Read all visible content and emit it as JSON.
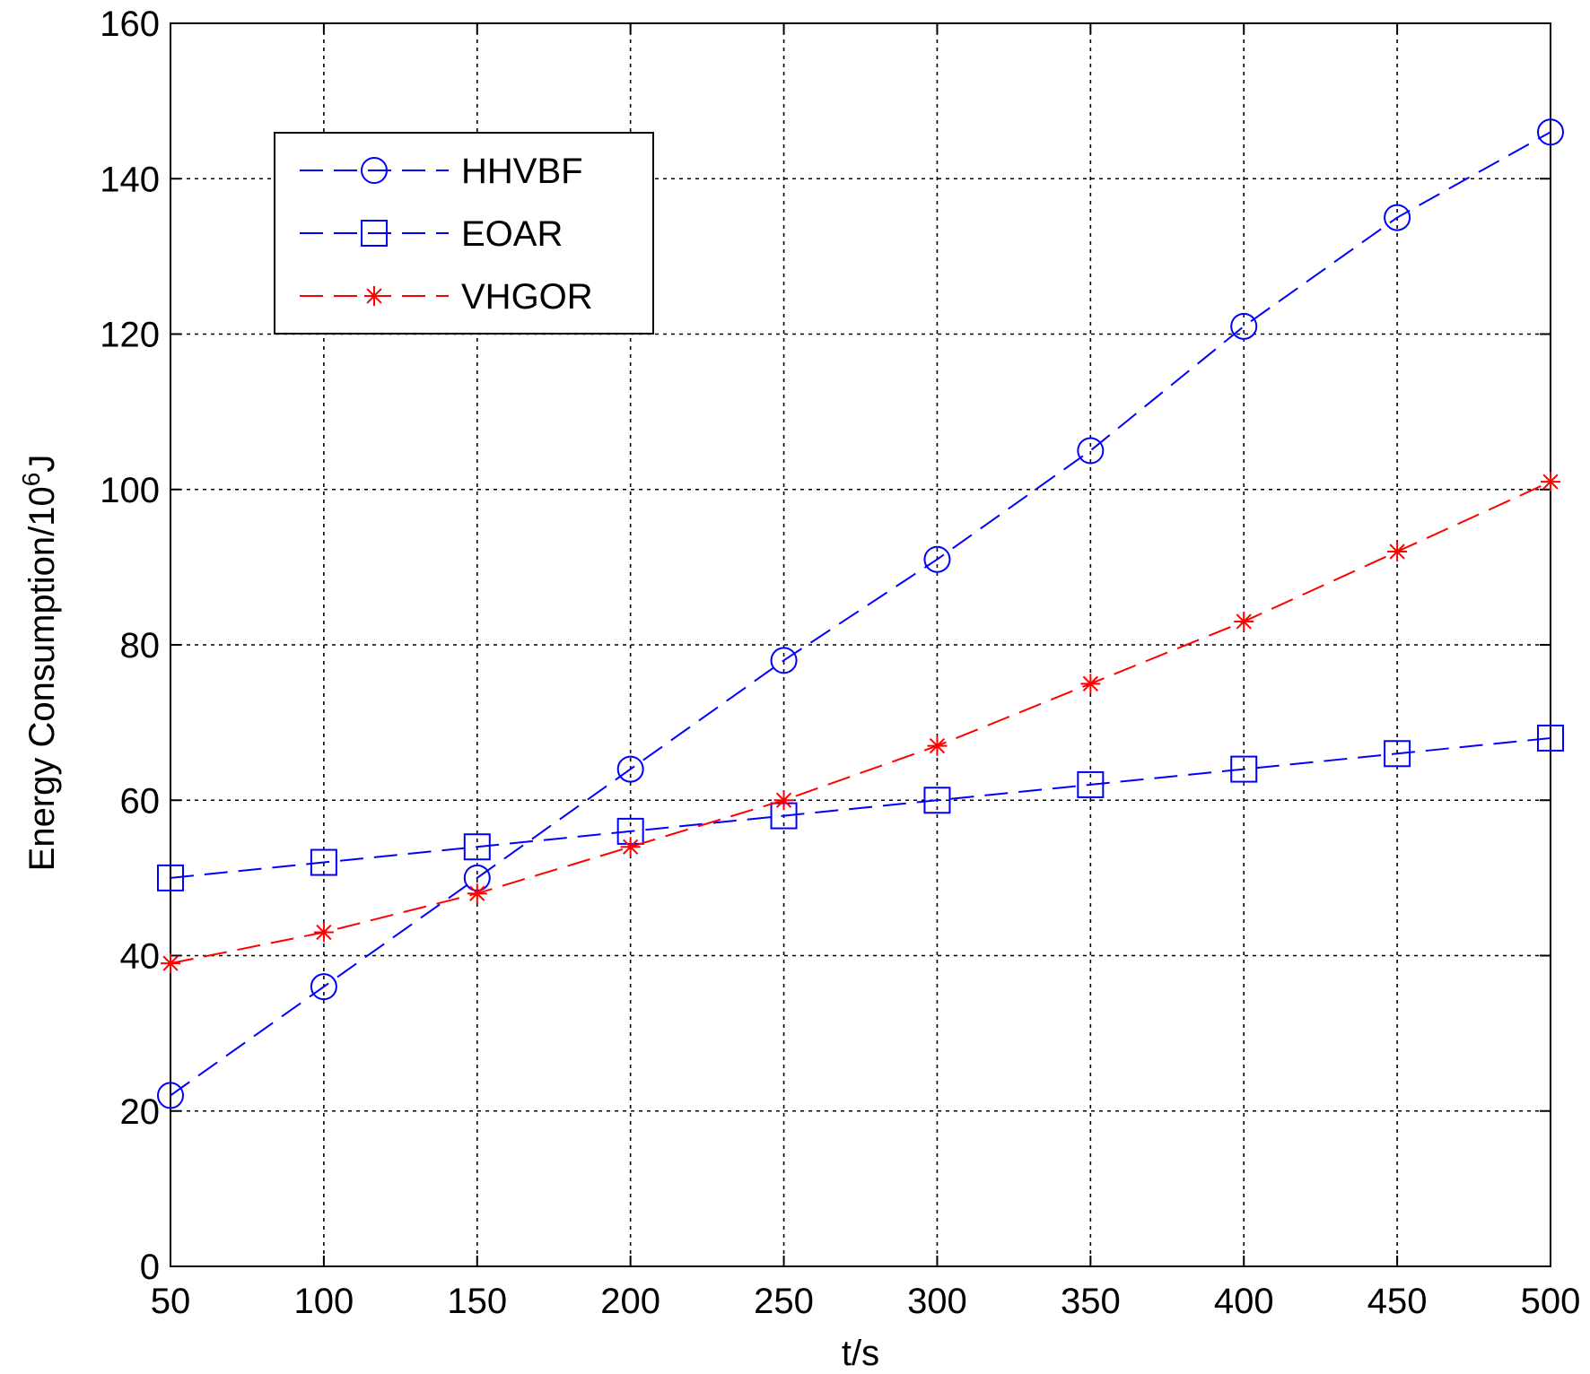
{
  "chart_data": {
    "type": "line",
    "x": [
      50,
      100,
      150,
      200,
      250,
      300,
      350,
      400,
      450,
      500
    ],
    "xlabel": "t/s",
    "ylabel": {
      "prefix": "Energy Consumption/10",
      "superscript": "6",
      "suffix": "J"
    },
    "xlim": [
      50,
      500
    ],
    "ylim": [
      0,
      160
    ],
    "xticks": [
      "50",
      "100",
      "150",
      "200",
      "250",
      "300",
      "350",
      "400",
      "450",
      "500"
    ],
    "yticks": [
      "0",
      "20",
      "40",
      "60",
      "80",
      "100",
      "120",
      "140",
      "160"
    ],
    "grid": true,
    "legend_position": "top-left",
    "series": [
      {
        "name": "HHVBF",
        "color": "#0000ff",
        "marker": "circle",
        "line_style": "dashed",
        "values": [
          22,
          36,
          50,
          64,
          78,
          91,
          105,
          121,
          135,
          146
        ]
      },
      {
        "name": "EOAR",
        "color": "#0000ff",
        "marker": "square",
        "line_style": "dashed",
        "values": [
          50,
          52,
          54,
          56,
          58,
          60,
          62,
          64,
          66,
          68
        ]
      },
      {
        "name": "VHGOR",
        "color": "#ff0000",
        "marker": "asterisk",
        "line_style": "dashed",
        "values": [
          39,
          43,
          48,
          54,
          60,
          67,
          75,
          83,
          92,
          101
        ]
      }
    ]
  }
}
